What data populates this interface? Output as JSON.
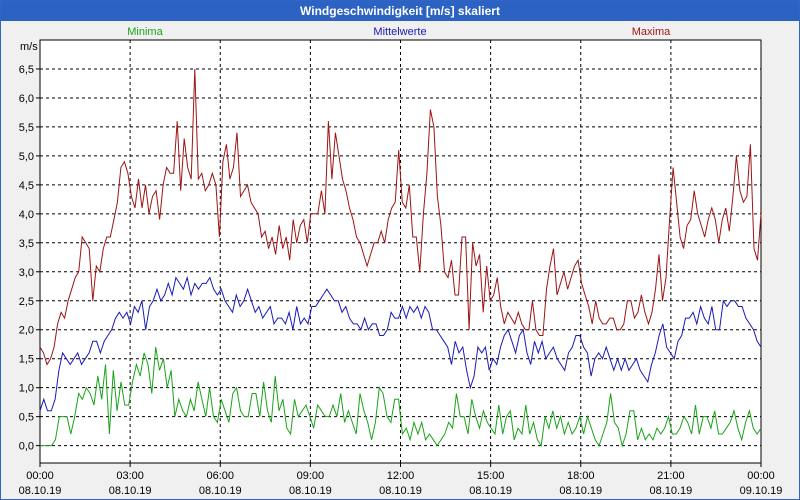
{
  "window": {
    "title": "Windgeschwindigkeit [m/s] skaliert"
  },
  "chart_data": {
    "type": "line",
    "title": "Windgeschwindigkeit [m/s] skaliert",
    "ylabel": "m/s",
    "xlabel": "",
    "ylim": [
      -0.3,
      7.0
    ],
    "xlim": [
      0,
      24
    ],
    "grid": true,
    "legend_placement": "top",
    "y_ticks": [
      0.0,
      0.5,
      1.0,
      1.5,
      2.0,
      2.5,
      3.0,
      3.5,
      4.0,
      4.5,
      5.0,
      5.5,
      6.0,
      6.5
    ],
    "y_tick_labels": [
      "0,0",
      "0,5",
      "1,0",
      "1,5",
      "2,0",
      "2,5",
      "3,0",
      "3,5",
      "4,0",
      "4,5",
      "5,0",
      "5,5",
      "6,0",
      "6,5"
    ],
    "x_ticks": [
      0,
      3,
      6,
      9,
      12,
      15,
      18,
      21,
      24
    ],
    "x_tick_labels": [
      [
        "00:00",
        "08.10.19"
      ],
      [
        "03:00",
        "08.10.19"
      ],
      [
        "06:00",
        "08.10.19"
      ],
      [
        "09:00",
        "08.10.19"
      ],
      [
        "12:00",
        "08.10.19"
      ],
      [
        "15:00",
        "08.10.19"
      ],
      [
        "18:00",
        "08.10.19"
      ],
      [
        "21:00",
        "08.10.19"
      ],
      [
        "00:00",
        "09.10.19"
      ]
    ],
    "series": [
      {
        "name": "Minima",
        "color": "#1aa31a",
        "legend_pos": "left",
        "values": [
          0.0,
          0.0,
          0.0,
          0.0,
          0.1,
          0.5,
          0.5,
          0.5,
          0.2,
          0.5,
          0.9,
          0.8,
          1.0,
          0.9,
          0.7,
          1.2,
          0.8,
          1.4,
          0.2,
          1.3,
          0.6,
          1.1,
          0.7,
          0.7,
          1.1,
          1.4,
          1.2,
          1.6,
          1.4,
          0.9,
          1.7,
          1.3,
          1.5,
          1.0,
          1.3,
          0.5,
          0.8,
          0.6,
          0.5,
          0.8,
          0.6,
          1.1,
          0.8,
          0.5,
          1.0,
          0.5,
          0.4,
          0.8,
          0.6,
          0.4,
          0.9,
          1.0,
          0.6,
          0.5,
          0.5,
          0.9,
          0.9,
          0.5,
          1.1,
          0.6,
          0.4,
          1.2,
          0.6,
          0.8,
          0.3,
          0.2,
          0.8,
          0.5,
          0.6,
          0.7,
          0.5,
          0.3,
          0.7,
          0.6,
          0.5,
          0.5,
          0.7,
          0.5,
          0.9,
          0.4,
          0.6,
          0.4,
          0.2,
          0.9,
          0.6,
          0.4,
          0.1,
          0.4,
          1.0,
          0.9,
          0.5,
          0.4,
          0.8,
          0.8,
          0.2,
          0.3,
          0.1,
          0.4,
          0.2,
          0.4,
          0.1,
          0.2,
          0.1,
          0.0,
          0.1,
          0.2,
          0.4,
          0.3,
          0.9,
          0.5,
          0.5,
          0.2,
          0.8,
          0.5,
          0.3,
          0.6,
          0.4,
          0.3,
          0.2,
          0.7,
          0.2,
          0.5,
          0.6,
          0.1,
          0.3,
          0.2,
          0.7,
          0.2,
          0.4,
          0.1,
          0.0,
          0.5,
          0.3,
          0.6,
          0.3,
          0.5,
          0.2,
          0.4,
          0.2,
          0.3,
          0.5,
          0.2,
          0.5,
          0.3,
          0.1,
          0.0,
          0.2,
          0.4,
          0.9,
          0.4,
          0.3,
          0.0,
          0.2,
          0.6,
          0.6,
          0.1,
          0.3,
          0.1,
          0.2,
          0.1,
          0.3,
          0.2,
          0.3,
          0.5,
          0.2,
          0.2,
          0.3,
          0.5,
          0.4,
          0.2,
          0.7,
          0.2,
          0.5,
          0.5,
          0.3,
          0.6,
          0.2,
          0.2,
          0.3,
          0.4,
          0.6,
          0.3,
          0.1,
          0.4,
          0.6,
          0.3,
          0.2,
          0.3
        ]
      },
      {
        "name": "Mittelwerte",
        "color": "#1a1ab8",
        "legend_pos": "center",
        "values": [
          0.6,
          0.8,
          0.6,
          0.6,
          0.8,
          1.3,
          1.6,
          1.5,
          1.4,
          1.5,
          1.6,
          1.4,
          1.5,
          1.6,
          1.8,
          1.8,
          1.6,
          1.8,
          1.9,
          2.0,
          2.2,
          2.3,
          2.2,
          2.3,
          2.1,
          2.4,
          2.3,
          2.5,
          2.0,
          2.4,
          2.5,
          2.7,
          2.5,
          2.6,
          2.8,
          2.6,
          2.9,
          2.8,
          2.7,
          2.9,
          2.6,
          2.8,
          2.7,
          2.8,
          2.8,
          2.9,
          2.7,
          2.6,
          2.7,
          2.5,
          2.4,
          2.3,
          2.6,
          2.4,
          2.5,
          2.7,
          2.5,
          2.3,
          2.4,
          2.2,
          2.3,
          2.4,
          2.1,
          2.2,
          2.2,
          2.1,
          2.3,
          2.0,
          2.4,
          2.1,
          2.2,
          2.1,
          2.4,
          2.4,
          2.5,
          2.6,
          2.7,
          2.6,
          2.5,
          2.5,
          2.3,
          2.4,
          2.2,
          2.1,
          2.1,
          2.0,
          2.2,
          2.0,
          2.1,
          2.1,
          1.9,
          1.9,
          2.0,
          2.3,
          2.2,
          2.2,
          2.4,
          2.2,
          2.4,
          2.3,
          2.4,
          2.2,
          2.4,
          2.3,
          2.0,
          2.0,
          1.9,
          1.8,
          1.7,
          1.4,
          1.8,
          1.6,
          1.7,
          1.3,
          1.0,
          1.2,
          1.7,
          1.6,
          1.7,
          1.3,
          1.5,
          1.4,
          1.7,
          1.9,
          2.0,
          1.8,
          1.6,
          1.9,
          2.0,
          1.6,
          1.4,
          1.8,
          1.6,
          1.8,
          1.5,
          1.6,
          1.7,
          1.5,
          1.4,
          1.3,
          1.6,
          1.7,
          1.9,
          1.9,
          1.7,
          1.6,
          1.2,
          1.5,
          1.6,
          1.5,
          1.7,
          1.5,
          1.3,
          1.5,
          1.3,
          1.5,
          1.3,
          1.4,
          1.5,
          1.3,
          1.2,
          1.1,
          1.4,
          1.6,
          1.9,
          2.1,
          1.7,
          1.6,
          1.5,
          1.8,
          1.9,
          2.2,
          2.2,
          2.3,
          2.1,
          2.4,
          2.2,
          2.1,
          2.4,
          2.0,
          2.0,
          2.5,
          2.4,
          2.5,
          2.5,
          2.4,
          2.4,
          2.2,
          2.1,
          2.0,
          1.8,
          1.7
        ]
      },
      {
        "name": "Maxima",
        "color": "#9e1414",
        "legend_pos": "right",
        "values": [
          1.7,
          1.6,
          1.4,
          1.5,
          1.7,
          2.1,
          2.3,
          2.2,
          2.5,
          2.7,
          2.9,
          3.0,
          3.6,
          3.5,
          3.4,
          2.5,
          3.1,
          3.0,
          3.4,
          3.6,
          3.6,
          3.9,
          4.2,
          4.8,
          4.9,
          4.7,
          4.3,
          4.1,
          4.6,
          4.1,
          4.5,
          4.0,
          4.3,
          4.4,
          3.9,
          4.5,
          4.8,
          4.7,
          4.7,
          5.6,
          4.4,
          5.3,
          4.8,
          4.6,
          6.5,
          4.6,
          4.7,
          4.4,
          4.5,
          4.7,
          4.5,
          3.6,
          4.9,
          5.2,
          4.6,
          4.8,
          5.4,
          4.3,
          4.4,
          4.5,
          4.2,
          4.1,
          4.0,
          3.6,
          3.7,
          3.4,
          3.6,
          3.3,
          3.8,
          3.4,
          3.6,
          3.2,
          3.9,
          3.5,
          3.8,
          3.9,
          3.5,
          4.0,
          4.0,
          4.0,
          4.4,
          4.0,
          5.6,
          4.6,
          5.4,
          5.0,
          4.6,
          4.4,
          4.1,
          3.9,
          3.6,
          3.5,
          3.3,
          3.1,
          3.3,
          3.5,
          3.5,
          3.7,
          3.5,
          3.9,
          4.1,
          4.2,
          5.1,
          4.2,
          4.1,
          4.5,
          3.6,
          3.6,
          3.0,
          4.0,
          4.7,
          5.8,
          5.5,
          4.3,
          3.8,
          3.0,
          2.9,
          3.2,
          2.6,
          2.6,
          3.6,
          3.6,
          2.0,
          3.5,
          3.1,
          3.3,
          2.3,
          3.1,
          2.5,
          2.6,
          2.9,
          2.4,
          2.1,
          2.3,
          2.2,
          2.1,
          2.3,
          2.1,
          2.0,
          2.0,
          2.5,
          2.0,
          1.9,
          1.9,
          2.7,
          3.1,
          3.4,
          2.6,
          2.8,
          3.0,
          2.7,
          2.9,
          3.1,
          3.2,
          2.8,
          2.6,
          2.4,
          2.1,
          2.5,
          2.2,
          2.1,
          2.1,
          2.2,
          2.2,
          2.0,
          2.0,
          2.1,
          2.5,
          2.5,
          2.2,
          2.3,
          2.6,
          2.3,
          2.1,
          2.3,
          2.7,
          3.3,
          2.5,
          2.9,
          3.9,
          4.8,
          4.2,
          3.6,
          3.4,
          3.8,
          3.9,
          4.4,
          4.0,
          3.8,
          3.6,
          3.9,
          4.1,
          3.9,
          3.5,
          3.9,
          4.1,
          3.7,
          4.3,
          5.0,
          4.4,
          4.2,
          4.3,
          5.2,
          3.4,
          3.2,
          4.0
        ]
      }
    ]
  }
}
